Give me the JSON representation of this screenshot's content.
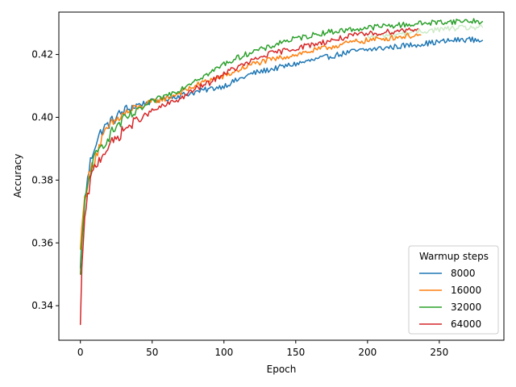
{
  "chart_data": {
    "type": "line",
    "title": "",
    "xlabel": "Epoch",
    "ylabel": "Accuracy",
    "xlim": [
      -15,
      295
    ],
    "ylim": [
      0.329,
      0.4335
    ],
    "xticks": [
      0,
      50,
      100,
      150,
      200,
      250
    ],
    "yticks": [
      0.34,
      0.36,
      0.38,
      0.4,
      0.42
    ],
    "ytick_labels": [
      "0.34",
      "0.36",
      "0.38",
      "0.40",
      "0.42"
    ],
    "grid": false,
    "legend": {
      "title": "Warmup steps",
      "placement": "lower-right"
    },
    "series": [
      {
        "name": "8000",
        "color": "#1f77b4",
        "x": [
          0,
          1,
          2,
          3,
          5,
          7,
          10,
          15,
          20,
          25,
          30,
          40,
          50,
          60,
          70,
          80,
          90,
          100,
          110,
          120,
          130,
          140,
          150,
          160,
          170,
          180,
          190,
          200,
          210,
          220,
          230,
          240,
          250,
          260,
          270,
          280
        ],
        "y": [
          0.352,
          0.362,
          0.368,
          0.374,
          0.38,
          0.386,
          0.391,
          0.396,
          0.398,
          0.4,
          0.402,
          0.404,
          0.405,
          0.406,
          0.407,
          0.408,
          0.409,
          0.41,
          0.412,
          0.414,
          0.415,
          0.416,
          0.417,
          0.418,
          0.419,
          0.42,
          0.421,
          0.4215,
          0.422,
          0.4225,
          0.423,
          0.4235,
          0.424,
          0.4245,
          0.4248,
          0.4245
        ]
      },
      {
        "name": "16000",
        "color": "#ff7f0e",
        "x": [
          0,
          1,
          2,
          3,
          5,
          7,
          10,
          15,
          20,
          25,
          30,
          40,
          50,
          60,
          70,
          80,
          90,
          100,
          110,
          120,
          130,
          140,
          150,
          160,
          170,
          180,
          190,
          200,
          210,
          220,
          230,
          237
        ],
        "y": [
          0.358,
          0.365,
          0.37,
          0.374,
          0.379,
          0.383,
          0.387,
          0.393,
          0.397,
          0.399,
          0.401,
          0.403,
          0.405,
          0.406,
          0.408,
          0.41,
          0.412,
          0.413,
          0.415,
          0.417,
          0.418,
          0.419,
          0.42,
          0.421,
          0.422,
          0.423,
          0.424,
          0.4245,
          0.425,
          0.4255,
          0.426,
          0.4262
        ]
      },
      {
        "name": "32000",
        "color": "#2ca02c",
        "x": [
          0,
          1,
          2,
          3,
          5,
          7,
          10,
          15,
          20,
          25,
          30,
          40,
          50,
          60,
          70,
          80,
          90,
          100,
          110,
          120,
          130,
          140,
          150,
          160,
          170,
          180,
          190,
          200,
          210,
          220,
          230,
          240,
          250,
          260,
          270,
          280
        ],
        "y": [
          0.35,
          0.36,
          0.366,
          0.372,
          0.378,
          0.383,
          0.387,
          0.391,
          0.394,
          0.397,
          0.399,
          0.402,
          0.405,
          0.407,
          0.409,
          0.412,
          0.414,
          0.417,
          0.419,
          0.421,
          0.422,
          0.424,
          0.425,
          0.426,
          0.427,
          0.4275,
          0.428,
          0.4285,
          0.429,
          0.4293,
          0.4296,
          0.43,
          0.4303,
          0.4305,
          0.4307,
          0.4305
        ]
      },
      {
        "name": "64000",
        "color": "#d62728",
        "x": [
          0,
          1,
          2,
          3,
          5,
          7,
          10,
          15,
          20,
          25,
          30,
          40,
          50,
          60,
          70,
          80,
          90,
          100,
          110,
          120,
          130,
          140,
          150,
          160,
          170,
          180,
          190,
          200,
          210,
          220,
          230,
          235
        ],
        "y": [
          0.334,
          0.352,
          0.36,
          0.367,
          0.374,
          0.38,
          0.384,
          0.388,
          0.391,
          0.393,
          0.396,
          0.399,
          0.402,
          0.404,
          0.406,
          0.409,
          0.411,
          0.414,
          0.416,
          0.418,
          0.42,
          0.421,
          0.422,
          0.423,
          0.424,
          0.425,
          0.426,
          0.4265,
          0.427,
          0.4275,
          0.428,
          0.4282
        ]
      },
      {
        "name": "",
        "color": "#c7e9c0",
        "x": [
          200,
          210,
          220,
          230,
          240,
          250,
          260,
          270,
          280
        ],
        "y": [
          0.4255,
          0.426,
          0.4265,
          0.427,
          0.4275,
          0.428,
          0.4283,
          0.4285,
          0.4287
        ]
      }
    ]
  }
}
